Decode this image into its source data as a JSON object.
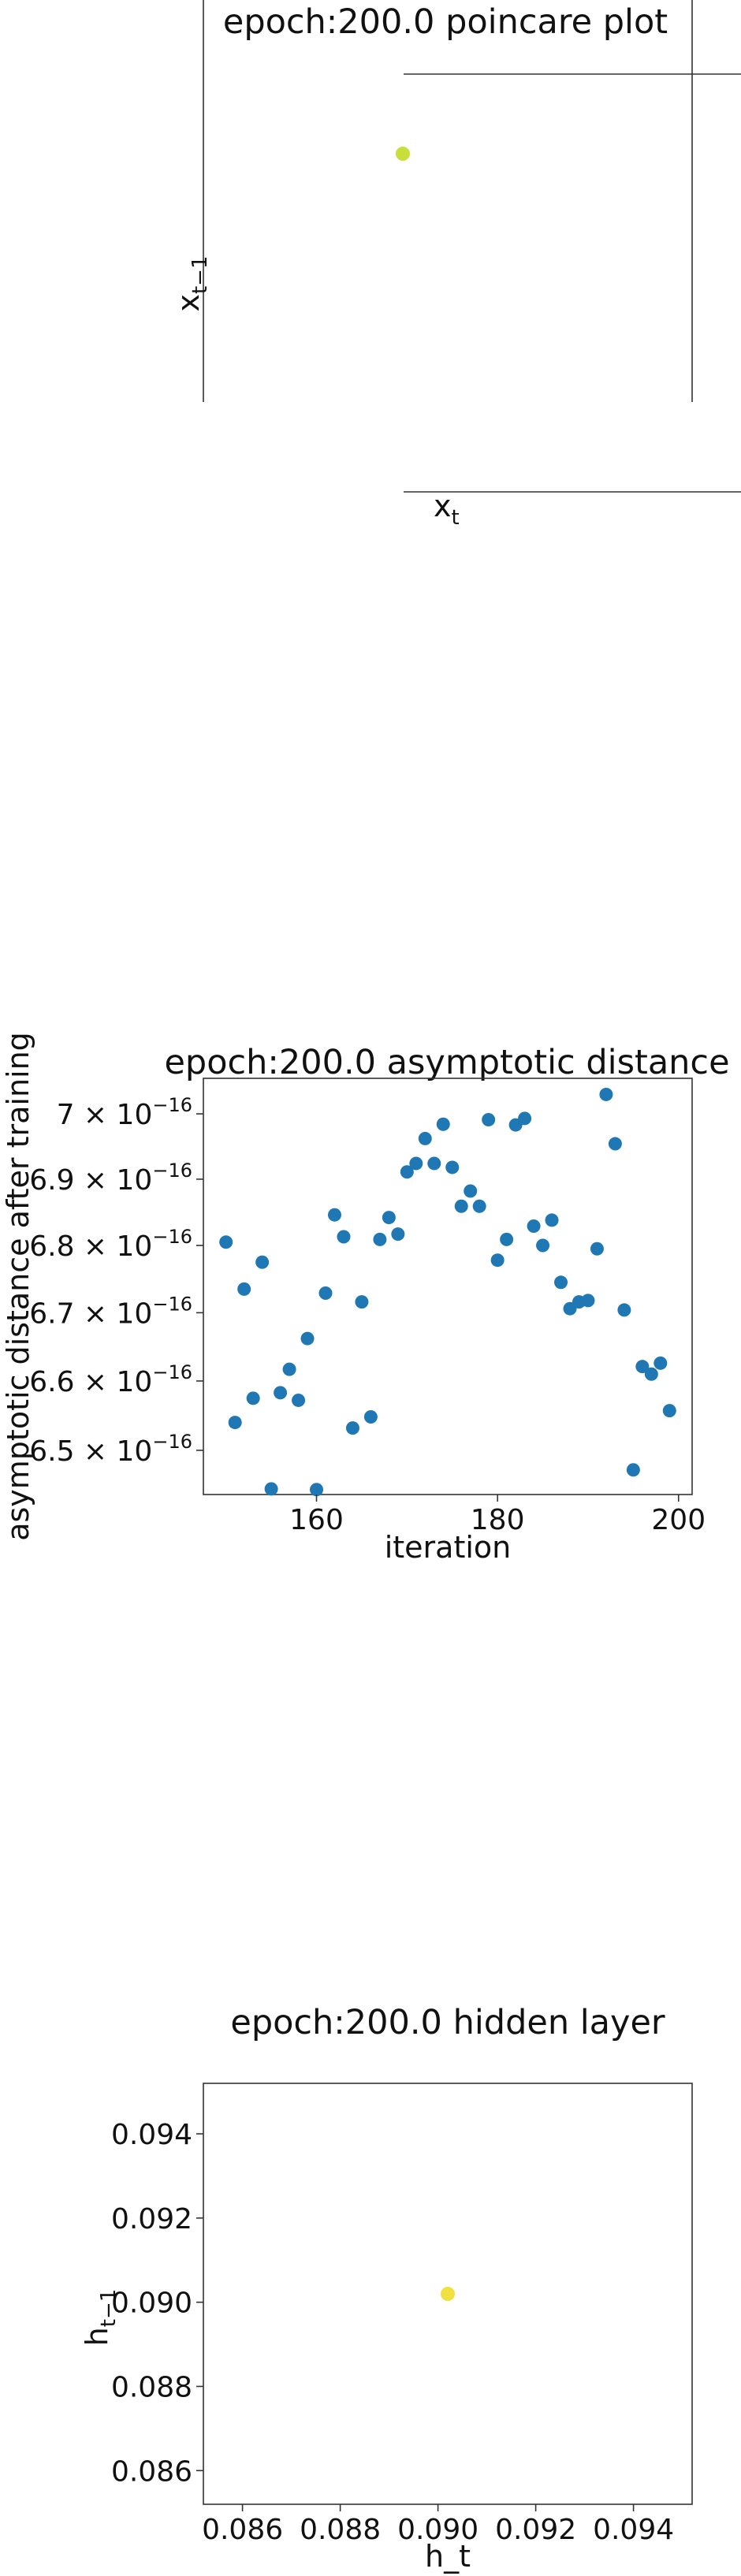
{
  "chart_data": [
    {
      "type": "scatter",
      "title": "epoch:200.0 poincare plot",
      "xlabel": "x_t",
      "ylabel": "x_{t-1}",
      "points": [
        {
          "x": 0,
          "y": 0
        }
      ],
      "point_color": "#c8df3b",
      "grid": false,
      "legend": "none"
    },
    {
      "type": "scatter",
      "title": "epoch:200.0 asymptotic distance",
      "xlabel": "iteration",
      "ylabel": "asymptotic distance after training",
      "xlim": [
        147.5,
        201.5
      ],
      "ylim": [
        6.437e-16,
        7.055e-16
      ],
      "log_y": true,
      "x_ticks": [
        160,
        180,
        200
      ],
      "y_ticks": [
        {
          "value": 6.5e-16,
          "mantissa": "6.5",
          "exponent": "−16"
        },
        {
          "value": 6.6e-16,
          "mantissa": "6.6",
          "exponent": "−16"
        },
        {
          "value": 6.7e-16,
          "mantissa": "6.7",
          "exponent": "−16"
        },
        {
          "value": 6.8e-16,
          "mantissa": "6.8",
          "exponent": "−16"
        },
        {
          "value": 6.9e-16,
          "mantissa": "6.9",
          "exponent": "−16"
        },
        {
          "value": 7e-16,
          "mantissa": "7",
          "exponent": "−16"
        }
      ],
      "point_color": "#1f77b4",
      "x": [
        150,
        151,
        152,
        153,
        154,
        155,
        156,
        157,
        158,
        159,
        160,
        161,
        162,
        163,
        164,
        165,
        166,
        167,
        168,
        169,
        170,
        171,
        172,
        173,
        174,
        175,
        176,
        177,
        178,
        179,
        180,
        181,
        182,
        183,
        184,
        185,
        186,
        187,
        188,
        189,
        190,
        191,
        192,
        193,
        194,
        195,
        196,
        197,
        198,
        199
      ],
      "y": [
        6.805e-16,
        6.54e-16,
        6.735e-16,
        6.575e-16,
        6.775e-16,
        6.445e-16,
        6.583e-16,
        6.617e-16,
        6.572e-16,
        6.662e-16,
        6.444e-16,
        6.729e-16,
        6.846e-16,
        6.813e-16,
        6.532e-16,
        6.716e-16,
        6.548e-16,
        6.809e-16,
        6.842e-16,
        6.817e-16,
        6.911e-16,
        6.924e-16,
        6.962e-16,
        6.924e-16,
        6.984e-16,
        6.918e-16,
        6.859e-16,
        6.882e-16,
        6.859e-16,
        6.991e-16,
        6.778e-16,
        6.809e-16,
        6.983e-16,
        6.993e-16,
        6.829e-16,
        6.8e-16,
        6.838e-16,
        6.745e-16,
        6.706e-16,
        6.716e-16,
        6.718e-16,
        6.795e-16,
        7.03e-16,
        6.954e-16,
        6.704e-16,
        6.472e-16,
        6.621e-16,
        6.61e-16,
        6.626e-16,
        6.557e-16
      ],
      "grid": false,
      "legend": "none"
    },
    {
      "type": "scatter",
      "title": "epoch:200.0 hidden layer",
      "xlabel": "h_t",
      "ylabel": "h_{t-1}",
      "xlim": [
        0.0852,
        0.0952
      ],
      "ylim": [
        0.0852,
        0.0952
      ],
      "x_ticks": [
        "0.086",
        "0.088",
        "0.090",
        "0.092",
        "0.094"
      ],
      "y_ticks": [
        "0.086",
        "0.088",
        "0.090",
        "0.092",
        "0.094"
      ],
      "points": [
        {
          "x": 0.0902,
          "y": 0.0902
        }
      ],
      "point_color": "#f0e040",
      "grid": false,
      "legend": "none"
    }
  ]
}
